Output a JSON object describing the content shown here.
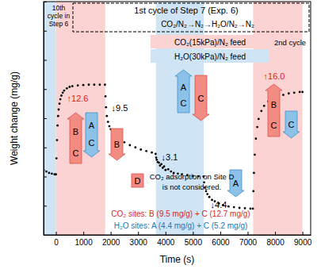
{
  "chart_data": {
    "type": "scatter",
    "x_label": "Time (s)",
    "y_label": "Weight change (mg/g)",
    "xlim": [
      -450,
      9300
    ],
    "xticks": [
      0,
      1000,
      2000,
      3000,
      4000,
      5000,
      6000,
      7000,
      8000,
      9000
    ],
    "ylim": [
      -8,
      24
    ],
    "yticks": [
      -8,
      -4,
      0,
      4,
      8,
      12,
      16,
      20,
      24
    ],
    "tick_labels": "x",
    "x": [
      -450,
      -350,
      -250,
      -150,
      -50,
      0,
      20,
      40,
      60,
      80,
      100,
      130,
      160,
      200,
      250,
      300,
      400,
      500,
      600,
      800,
      1000,
      1200,
      1400,
      1600,
      1790,
      1810,
      1830,
      1860,
      1900,
      1950,
      2000,
      2100,
      2200,
      2300,
      2500,
      2700,
      2900,
      3100,
      3300,
      3500,
      3640,
      3660,
      3680,
      3720,
      3760,
      3800,
      3850,
      3900,
      3950,
      4000,
      4100,
      4200,
      4300,
      4450,
      4600,
      4800,
      5000,
      5200,
      5390,
      5410,
      5440,
      5480,
      5530,
      5600,
      5700,
      5800,
      5950,
      6100,
      6300,
      6500,
      6700,
      6900,
      7100,
      7190,
      7210,
      7230,
      7260,
      7300,
      7350,
      7400,
      7500,
      7600,
      7750,
      7900,
      8100,
      8300,
      8500,
      8700,
      8900,
      9000
    ],
    "series": [
      {
        "color": "#000000",
        "marker": "circle",
        "values": [
          0.9,
          0.7,
          0.5,
          0.4,
          0.3,
          0.3,
          2.5,
          5.0,
          7.0,
          8.3,
          9.2,
          10.0,
          10.6,
          11.1,
          11.5,
          11.8,
          12.1,
          12.3,
          12.4,
          12.5,
          12.55,
          12.6,
          12.6,
          12.6,
          12.6,
          11.0,
          9.5,
          8.3,
          7.5,
          6.9,
          6.5,
          5.9,
          5.5,
          5.2,
          4.7,
          4.3,
          4.0,
          3.7,
          3.5,
          3.3,
          3.1,
          2.6,
          2.3,
          2.0,
          1.9,
          1.5,
          1.7,
          1.2,
          1.4,
          0.9,
          1.0,
          0.7,
          0.5,
          0.4,
          0.3,
          0.2,
          0.1,
          0.05,
          0.0,
          -0.8,
          -1.5,
          -2.0,
          -2.4,
          -2.8,
          -3.2,
          -3.4,
          -3.7,
          -3.9,
          -4.1,
          -4.2,
          -4.3,
          -4.35,
          -4.4,
          -4.4,
          -2.0,
          0.5,
          3.0,
          5.2,
          6.8,
          7.9,
          9.0,
          9.7,
          10.3,
          10.7,
          11.0,
          11.2,
          11.4,
          11.5,
          11.6,
          11.6
        ]
      }
    ],
    "bands": [
      {
        "start": -450,
        "end": 0,
        "color": "#cfe5f5"
      },
      {
        "start": 0,
        "end": 1800,
        "color": "#fbd3d3"
      },
      {
        "start": 3650,
        "end": 5400,
        "color": "#cfe5f5"
      },
      {
        "start": 7200,
        "end": 9000,
        "color": "#fbd3d3"
      }
    ],
    "feeds": [
      {
        "name": "CO₂(15kPa)/N₂ feed",
        "color": "#fbd3d3"
      },
      {
        "name": "H₂O(30kPa)/N₂ feed",
        "color": "#cfe5f5"
      }
    ],
    "header": {
      "title": "1st cycle of Step 7 (Exp. 6)",
      "sequence": "CO₂/N₂→N₂→H₂O/N₂→N₂"
    },
    "previous_label": [
      "10th",
      "cycle in",
      "Step 6"
    ],
    "next_label": "2nd cycle",
    "annotations": [
      {
        "text": "↑12.6",
        "color": "#e02020"
      },
      {
        "text": "↓9.5",
        "color": "#000000"
      },
      {
        "text": "↓3.1",
        "color": "#000000"
      },
      {
        "text": "↓4.4",
        "color": "#000000"
      },
      {
        "text": "↑16.0",
        "color": "#e02020"
      }
    ],
    "site_arrows": [
      [
        "B",
        "C"
      ],
      [
        "A",
        "C"
      ],
      [
        "B"
      ],
      [
        "A",
        "C"
      ],
      [
        "C"
      ],
      [
        "A"
      ],
      [
        "B",
        "C"
      ],
      [
        "C"
      ]
    ],
    "notes": {
      "site_d": "D",
      "site_d_text": [
        "CO₂ adsorption on Site D",
        "is not considered."
      ],
      "co2_sites": "CO₂ sites: B (9.5 mg/g) + C (12.7 mg/g)",
      "h2o_sites": "H₂O sites: A (4.4 mg/g) + C (5.2 mg/g)"
    }
  }
}
